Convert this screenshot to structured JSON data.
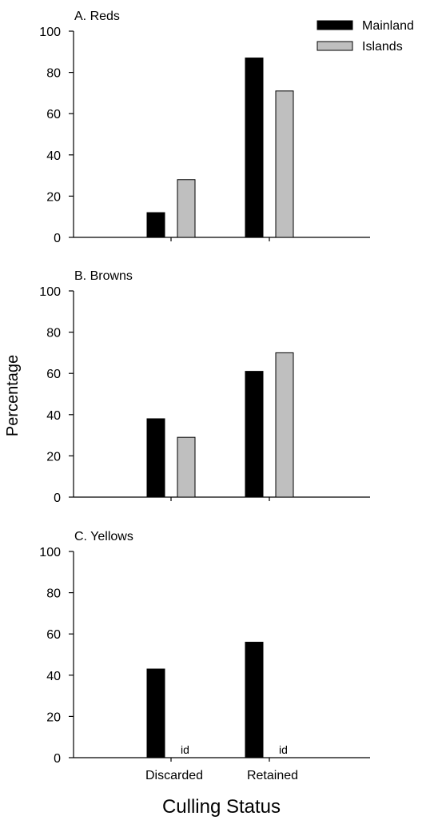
{
  "chart_data": {
    "type": "bar",
    "xlabel": "Culling Status",
    "ylabel": "Percentage",
    "categories": [
      "Discarded",
      "Retained"
    ],
    "legend": {
      "placement": "top-right",
      "entries": [
        {
          "name": "Mainland",
          "color": "#000000"
        },
        {
          "name": "Islands",
          "color": "#bfbfbf"
        }
      ]
    },
    "ylim": [
      0,
      100
    ],
    "yticks": [
      "0",
      "20",
      "40",
      "60",
      "80",
      "100"
    ],
    "panels": [
      {
        "title": "A. Reds",
        "series": [
          {
            "name": "Mainland",
            "values": [
              12,
              87
            ]
          },
          {
            "name": "Islands",
            "values": [
              28,
              71
            ]
          }
        ]
      },
      {
        "title": "B. Browns",
        "series": [
          {
            "name": "Mainland",
            "values": [
              38,
              61
            ]
          },
          {
            "name": "Islands",
            "values": [
              29,
              70
            ]
          }
        ]
      },
      {
        "title": "C. Yellows",
        "series": [
          {
            "name": "Mainland",
            "values": [
              43,
              56
            ]
          },
          {
            "name": "Islands",
            "values": [
              null,
              null
            ],
            "annotations": [
              "id",
              "id"
            ]
          }
        ]
      }
    ]
  }
}
